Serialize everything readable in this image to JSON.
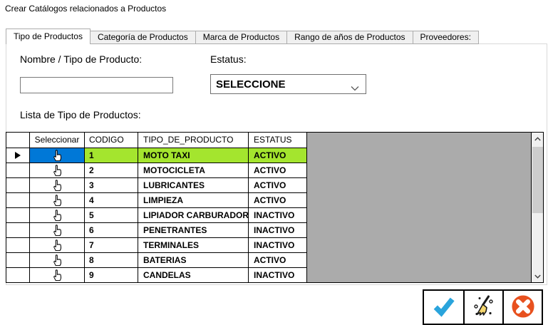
{
  "window": {
    "title": "Crear Catálogos relacionados a Productos"
  },
  "tabs": [
    {
      "label": "Tipo de Productos",
      "selected": true
    },
    {
      "label": "Categoría de Productos",
      "selected": false
    },
    {
      "label": "Marca de Productos",
      "selected": false
    },
    {
      "label": "Rango de años de Productos",
      "selected": false
    },
    {
      "label": "Proveedores:",
      "selected": false
    }
  ],
  "form": {
    "name_label": "Nombre / Tipo de Producto:",
    "name_value": "",
    "status_label": "Estatus:",
    "status_value": "SELECCIONE",
    "list_label": "Lista de Tipo de Productos:"
  },
  "grid": {
    "headers": {
      "row_selector": "",
      "seleccionar": "Seleccionar",
      "codigo": "CODIGO",
      "tipo": "TIPO_DE_PRODUCTO",
      "estatus": "ESTATUS"
    },
    "rows": [
      {
        "codigo": "1",
        "tipo": "MOTO TAXI",
        "estatus": "ACTIVO",
        "selected": true
      },
      {
        "codigo": "2",
        "tipo": "MOTOCICLETA",
        "estatus": "ACTIVO",
        "selected": false
      },
      {
        "codigo": "3",
        "tipo": "LUBRICANTES",
        "estatus": "ACTIVO",
        "selected": false
      },
      {
        "codigo": "4",
        "tipo": "LIMPIEZA",
        "estatus": "ACTIVO",
        "selected": false
      },
      {
        "codigo": "5",
        "tipo": "LIPIADOR CARBURADOR",
        "estatus": "INACTIVO",
        "selected": false
      },
      {
        "codigo": "6",
        "tipo": "PENETRANTES",
        "estatus": "INACTIVO",
        "selected": false
      },
      {
        "codigo": "7",
        "tipo": "TERMINALES",
        "estatus": "INACTIVO",
        "selected": false
      },
      {
        "codigo": "8",
        "tipo": "BATERIAS",
        "estatus": "ACTIVO",
        "selected": false
      },
      {
        "codigo": "9",
        "tipo": "CANDELAS",
        "estatus": "INACTIVO",
        "selected": false
      }
    ]
  },
  "toolbar": {
    "accept_icon": "check-icon",
    "clear_icon": "broom-icon",
    "cancel_icon": "cancel-icon"
  },
  "colors": {
    "selected_row_green": "#A4E52E",
    "selection_blue": "#0078D7",
    "grid_filler_gray": "#ABABAB",
    "check_blue": "#2AA4DC",
    "cancel_orange": "#E8511F",
    "broom_yellow": "#F5D76E"
  }
}
